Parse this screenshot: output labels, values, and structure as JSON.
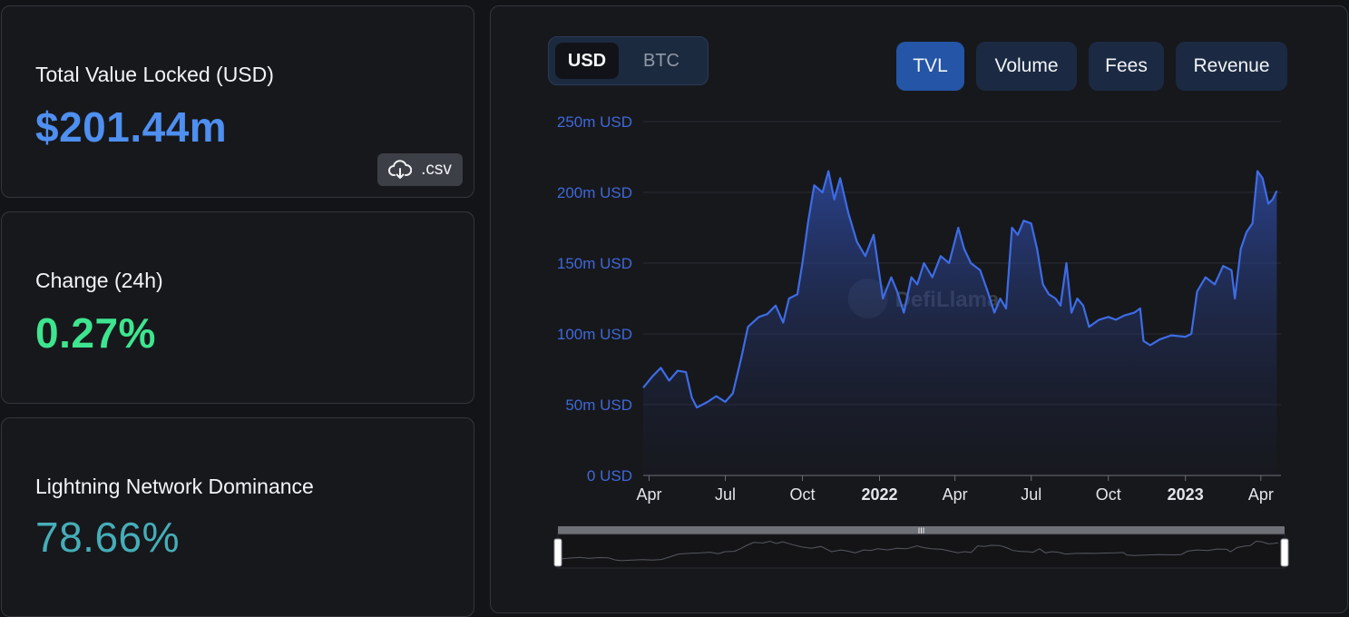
{
  "stats": {
    "tvl": {
      "label": "Total Value Locked (USD)",
      "value": "$201.44m",
      "color": "#4e8ff0",
      "csv_label": ".csv",
      "csv_icon": "cloud-download-icon"
    },
    "change": {
      "label": "Change (24h)",
      "value": "0.27%",
      "color": "#3ee58f"
    },
    "dominance": {
      "label": "Lightning Network Dominance",
      "value": "78.66%",
      "color": "#45aeb8"
    }
  },
  "currency_toggle": {
    "options": [
      "USD",
      "BTC"
    ],
    "selected": "USD"
  },
  "metric_tabs": {
    "options": [
      "TVL",
      "Volume",
      "Fees",
      "Revenue"
    ],
    "selected": "TVL"
  },
  "watermark": "DefiLlama",
  "colors": {
    "line": "#3d6ce6",
    "accent_active": "#2455a6",
    "axis_label": "#3f68d8",
    "background": "#17181c"
  },
  "chart_data": {
    "type": "area",
    "title": "",
    "xlabel": "",
    "ylabel": "",
    "y_ticks": [
      "0 USD",
      "50m USD",
      "100m USD",
      "150m USD",
      "200m USD",
      "250m USD"
    ],
    "ylim": [
      0,
      250
    ],
    "y_unit": "m USD",
    "x_ticks": [
      {
        "label": "Apr",
        "date": "2021-04-01",
        "bold": false
      },
      {
        "label": "Jul",
        "date": "2021-07-01",
        "bold": false
      },
      {
        "label": "Oct",
        "date": "2021-10-01",
        "bold": false
      },
      {
        "label": "2022",
        "date": "2022-01-01",
        "bold": true
      },
      {
        "label": "Apr",
        "date": "2022-04-01",
        "bold": false
      },
      {
        "label": "Jul",
        "date": "2022-07-01",
        "bold": false
      },
      {
        "label": "Oct",
        "date": "2022-10-01",
        "bold": false
      },
      {
        "label": "2023",
        "date": "2023-01-01",
        "bold": true
      },
      {
        "label": "Apr",
        "date": "2023-04-01",
        "bold": false
      }
    ],
    "xlim": [
      "2021-03-25",
      "2023-04-25"
    ],
    "grid": true,
    "legend": "none",
    "series": [
      {
        "values": [
          [
            "2021-03-25",
            62
          ],
          [
            "2021-04-05",
            70
          ],
          [
            "2021-04-15",
            76
          ],
          [
            "2021-04-25",
            67
          ],
          [
            "2021-05-05",
            74
          ],
          [
            "2021-05-15",
            73
          ],
          [
            "2021-05-22",
            55
          ],
          [
            "2021-05-28",
            48
          ],
          [
            "2021-06-10",
            52
          ],
          [
            "2021-06-20",
            56
          ],
          [
            "2021-07-01",
            52
          ],
          [
            "2021-07-10",
            58
          ],
          [
            "2021-07-20",
            83
          ],
          [
            "2021-07-28",
            105
          ],
          [
            "2021-08-10",
            112
          ],
          [
            "2021-08-20",
            114
          ],
          [
            "2021-08-30",
            120
          ],
          [
            "2021-09-08",
            108
          ],
          [
            "2021-09-15",
            125
          ],
          [
            "2021-09-25",
            128
          ],
          [
            "2021-10-01",
            150
          ],
          [
            "2021-10-08",
            180
          ],
          [
            "2021-10-15",
            205
          ],
          [
            "2021-10-25",
            200
          ],
          [
            "2021-11-01",
            215
          ],
          [
            "2021-11-08",
            195
          ],
          [
            "2021-11-15",
            210
          ],
          [
            "2021-11-25",
            185
          ],
          [
            "2021-12-05",
            165
          ],
          [
            "2021-12-15",
            155
          ],
          [
            "2021-12-25",
            170
          ],
          [
            "2022-01-05",
            125
          ],
          [
            "2022-01-15",
            140
          ],
          [
            "2022-01-22",
            130
          ],
          [
            "2022-01-30",
            115
          ],
          [
            "2022-02-08",
            140
          ],
          [
            "2022-02-15",
            135
          ],
          [
            "2022-02-23",
            150
          ],
          [
            "2022-03-05",
            140
          ],
          [
            "2022-03-15",
            155
          ],
          [
            "2022-03-25",
            150
          ],
          [
            "2022-04-05",
            175
          ],
          [
            "2022-04-12",
            160
          ],
          [
            "2022-04-20",
            150
          ],
          [
            "2022-05-01",
            145
          ],
          [
            "2022-05-10",
            130
          ],
          [
            "2022-05-18",
            115
          ],
          [
            "2022-05-25",
            125
          ],
          [
            "2022-06-01",
            118
          ],
          [
            "2022-06-08",
            175
          ],
          [
            "2022-06-15",
            170
          ],
          [
            "2022-06-22",
            180
          ],
          [
            "2022-07-01",
            178
          ],
          [
            "2022-07-08",
            160
          ],
          [
            "2022-07-15",
            135
          ],
          [
            "2022-07-22",
            128
          ],
          [
            "2022-07-30",
            125
          ],
          [
            "2022-08-05",
            120
          ],
          [
            "2022-08-12",
            150
          ],
          [
            "2022-08-18",
            115
          ],
          [
            "2022-08-25",
            125
          ],
          [
            "2022-09-01",
            120
          ],
          [
            "2022-09-08",
            105
          ],
          [
            "2022-09-20",
            110
          ],
          [
            "2022-10-01",
            112
          ],
          [
            "2022-10-10",
            110
          ],
          [
            "2022-10-20",
            113
          ],
          [
            "2022-11-01",
            115
          ],
          [
            "2022-11-08",
            118
          ],
          [
            "2022-11-12",
            95
          ],
          [
            "2022-11-20",
            92
          ],
          [
            "2022-12-01",
            96
          ],
          [
            "2022-12-15",
            99
          ],
          [
            "2023-01-01",
            98
          ],
          [
            "2023-01-08",
            100
          ],
          [
            "2023-01-15",
            130
          ],
          [
            "2023-01-25",
            140
          ],
          [
            "2023-02-05",
            135
          ],
          [
            "2023-02-15",
            148
          ],
          [
            "2023-02-25",
            145
          ],
          [
            "2023-03-01",
            125
          ],
          [
            "2023-03-08",
            160
          ],
          [
            "2023-03-15",
            172
          ],
          [
            "2023-03-22",
            178
          ],
          [
            "2023-03-28",
            215
          ],
          [
            "2023-04-03",
            210
          ],
          [
            "2023-04-10",
            192
          ],
          [
            "2023-04-15",
            195
          ],
          [
            "2023-04-20",
            201
          ]
        ]
      }
    ]
  }
}
